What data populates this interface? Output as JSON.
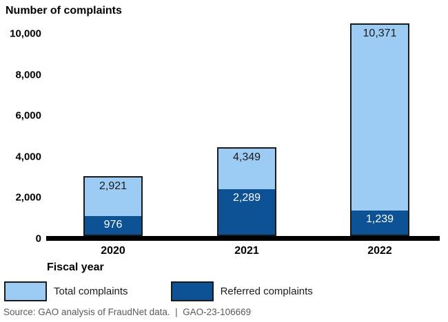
{
  "chart_data": {
    "type": "bar",
    "stacked": true,
    "title": "Number of complaints",
    "xlabel": "Fiscal year",
    "categories": [
      "2020",
      "2021",
      "2022"
    ],
    "series": [
      {
        "name": "Total complaints",
        "color": "#9CCBF4",
        "values": [
          2921,
          4349,
          10371
        ],
        "value_labels": [
          "2,921",
          "4,349",
          "10,371"
        ]
      },
      {
        "name": "Referred complaints",
        "color": "#0E5296",
        "values": [
          976,
          2289,
          1239
        ],
        "value_labels": [
          "976",
          "2,289",
          "1,239"
        ]
      }
    ],
    "ylim": [
      0,
      10500
    ],
    "yticks": [
      {
        "value": 0,
        "label": "0"
      },
      {
        "value": 2000,
        "label": "2,000"
      },
      {
        "value": 4000,
        "label": "4,000"
      },
      {
        "value": 6000,
        "label": "6,000"
      },
      {
        "value": 8000,
        "label": "8,000"
      },
      {
        "value": 10000,
        "label": "10,000"
      }
    ],
    "grid": false,
    "legend_position": "bottom"
  },
  "legend": {
    "items": [
      {
        "label": "Total complaints",
        "color": "#9CCBF4"
      },
      {
        "label": "Referred complaints",
        "color": "#0E5296"
      }
    ]
  },
  "source_note": "Source: GAO analysis of FraudNet data.  |  GAO-23-106669",
  "colors": {
    "total_fill": "#9CCBF4",
    "referred_fill": "#0E5296",
    "bar_border": "#1a1a1a",
    "axis": "#000000",
    "label_on_light": "#1a1a1a",
    "label_on_dark": "#ffffff",
    "source_text": "#595959"
  }
}
